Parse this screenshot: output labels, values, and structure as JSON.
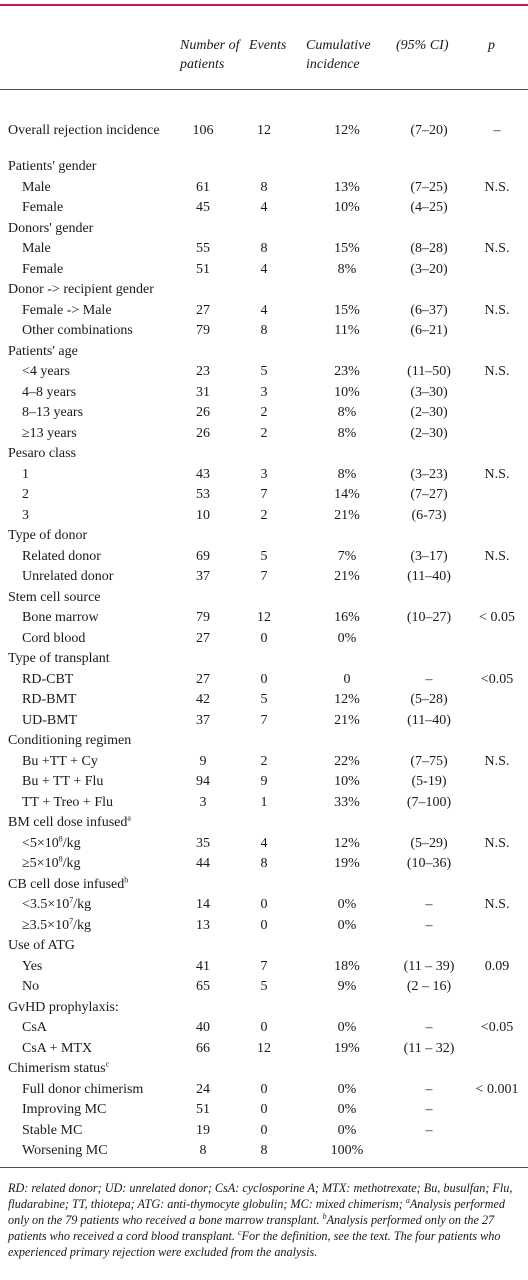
{
  "header": {
    "number_of_patients": "Number of patients",
    "events": "Events",
    "cumulative_incidence": "Cumulative incidence",
    "ci": "(95% CI)",
    "p": "p"
  },
  "rows": [
    {
      "type": "overall",
      "label": "Overall rejection incidence",
      "n": "106",
      "events": "12",
      "cum": "12%",
      "ci": "(7–20)",
      "p": "–"
    },
    {
      "type": "gap"
    },
    {
      "type": "group",
      "label": "Patients' gender"
    },
    {
      "type": "sub",
      "label": "Male",
      "n": "61",
      "events": "8",
      "cum": "13%",
      "ci": "(7–25)",
      "p": "N.S."
    },
    {
      "type": "sub",
      "label": "Female",
      "n": "45",
      "events": "4",
      "cum": "10%",
      "ci": "(4–25)",
      "p": ""
    },
    {
      "type": "group",
      "label": "Donors' gender"
    },
    {
      "type": "sub",
      "label": "Male",
      "n": "55",
      "events": "8",
      "cum": "15%",
      "ci": "(8–28)",
      "p": "N.S."
    },
    {
      "type": "sub",
      "label": "Female",
      "n": "51",
      "events": "4",
      "cum": "8%",
      "ci": "(3–20)",
      "p": ""
    },
    {
      "type": "group",
      "label": "Donor -> recipient gender"
    },
    {
      "type": "sub",
      "label": "Female -> Male",
      "n": "27",
      "events": "4",
      "cum": "15%",
      "ci": "(6–37)",
      "p": "N.S."
    },
    {
      "type": "sub",
      "label": "Other combinations",
      "n": "79",
      "events": "8",
      "cum": "11%",
      "ci": "(6–21)",
      "p": ""
    },
    {
      "type": "group",
      "label": "Patients' age"
    },
    {
      "type": "sub",
      "label": "<4 years",
      "n": "23",
      "events": "5",
      "cum": "23%",
      "ci": "(11–50)",
      "p": "N.S."
    },
    {
      "type": "sub",
      "label": "4–8 years",
      "n": "31",
      "events": "3",
      "cum": "10%",
      "ci": "(3–30)",
      "p": ""
    },
    {
      "type": "sub",
      "label": "8–13 years",
      "n": "26",
      "events": "2",
      "cum": "8%",
      "ci": "(2–30)",
      "p": ""
    },
    {
      "type": "sub",
      "label": "≥13 years",
      "n": "26",
      "events": "2",
      "cum": "8%",
      "ci": "(2–30)",
      "p": ""
    },
    {
      "type": "group",
      "label": "Pesaro class"
    },
    {
      "type": "sub",
      "label": "1",
      "n": "43",
      "events": "3",
      "cum": "8%",
      "ci": "(3–23)",
      "p": "N.S."
    },
    {
      "type": "sub",
      "label": "2",
      "n": "53",
      "events": "7",
      "cum": "14%",
      "ci": "(7–27)",
      "p": ""
    },
    {
      "type": "sub",
      "label": "3",
      "n": "10",
      "events": "2",
      "cum": "21%",
      "ci": "(6-73)",
      "p": ""
    },
    {
      "type": "group",
      "label": "Type of donor"
    },
    {
      "type": "sub",
      "label": "Related donor",
      "n": "69",
      "events": "5",
      "cum": "7%",
      "ci": "(3–17)",
      "p": "N.S."
    },
    {
      "type": "sub",
      "label": "Unrelated donor",
      "n": "37",
      "events": "7",
      "cum": "21%",
      "ci": "(11–40)",
      "p": ""
    },
    {
      "type": "group",
      "label": "Stem cell source"
    },
    {
      "type": "sub",
      "label": "Bone marrow",
      "n": "79",
      "events": "12",
      "cum": "16%",
      "ci": "(10–27)",
      "p": "< 0.05"
    },
    {
      "type": "sub",
      "label": "Cord blood",
      "n": "27",
      "events": "0",
      "cum": "0%",
      "ci": "",
      "p": ""
    },
    {
      "type": "group",
      "label": "Type of transplant"
    },
    {
      "type": "sub",
      "label": "RD-CBT",
      "n": "27",
      "events": "0",
      "cum": "0",
      "ci": "–",
      "p": "<0.05"
    },
    {
      "type": "sub",
      "label": "RD-BMT",
      "n": "42",
      "events": "5",
      "cum": "12%",
      "ci": "(5–28)",
      "p": ""
    },
    {
      "type": "sub",
      "label": "UD-BMT",
      "n": "37",
      "events": "7",
      "cum": "21%",
      "ci": "(11–40)",
      "p": ""
    },
    {
      "type": "group",
      "label": "Conditioning regimen"
    },
    {
      "type": "sub",
      "label": "Bu +TT + Cy",
      "n": "9",
      "events": "2",
      "cum": "22%",
      "ci": "(7–75)",
      "p": "N.S."
    },
    {
      "type": "sub",
      "label": "Bu + TT + Flu",
      "n": "94",
      "events": "9",
      "cum": "10%",
      "ci": "(5-19)",
      "p": ""
    },
    {
      "type": "sub",
      "label": "TT + Treo + Flu",
      "n": "3",
      "events": "1",
      "cum": "33%",
      "ci": "(7–100)",
      "p": ""
    },
    {
      "type": "group",
      "label": "BM cell dose infused",
      "sup": "a"
    },
    {
      "type": "sub",
      "label": "<5×10",
      "sup": "8",
      "suffix": "/kg",
      "n": "35",
      "events": "4",
      "cum": "12%",
      "ci": "(5–29)",
      "p": "N.S."
    },
    {
      "type": "sub",
      "label": "≥5×10",
      "sup": "8",
      "suffix": "/kg",
      "n": "44",
      "events": "8",
      "cum": "19%",
      "ci": "(10–36)",
      "p": ""
    },
    {
      "type": "group",
      "label": "CB cell dose infused",
      "sup": "b"
    },
    {
      "type": "sub",
      "label": "<3.5×10",
      "sup": "7",
      "suffix": "/kg",
      "n": "14",
      "events": "0",
      "cum": "0%",
      "ci": "–",
      "p": "N.S."
    },
    {
      "type": "sub",
      "label": "≥3.5×10",
      "sup": "7",
      "suffix": "/kg",
      "n": "13",
      "events": "0",
      "cum": "0%",
      "ci": "–",
      "p": ""
    },
    {
      "type": "group",
      "label": "Use of ATG"
    },
    {
      "type": "sub",
      "label": "Yes",
      "n": "41",
      "events": "7",
      "cum": "18%",
      "ci": "(11 – 39)",
      "p": "0.09"
    },
    {
      "type": "sub",
      "label": "No",
      "n": "65",
      "events": "5",
      "cum": "9%",
      "ci": "(2 – 16)",
      "p": ""
    },
    {
      "type": "group",
      "label": "GvHD prophylaxis:"
    },
    {
      "type": "sub",
      "label": "CsA",
      "n": "40",
      "events": "0",
      "cum": "0%",
      "ci": "–",
      "p": "<0.05"
    },
    {
      "type": "sub",
      "label": "CsA + MTX",
      "n": "66",
      "events": "12",
      "cum": "19%",
      "ci": "(11 – 32)",
      "p": ""
    },
    {
      "type": "group",
      "label": "Chimerism status",
      "sup": "c"
    },
    {
      "type": "sub",
      "label": "Full donor chimerism",
      "n": "24",
      "events": "0",
      "cum": "0%",
      "ci": "–",
      "p": "< 0.001"
    },
    {
      "type": "sub",
      "label": "Improving MC",
      "n": "51",
      "events": "0",
      "cum": "0%",
      "ci": "–",
      "p": ""
    },
    {
      "type": "sub",
      "label": "Stable MC",
      "n": "19",
      "events": "0",
      "cum": "0%",
      "ci": "–",
      "p": ""
    },
    {
      "type": "sub",
      "label": "Worsening MC",
      "n": "8",
      "events": "8",
      "cum": "100%",
      "ci": "",
      "p": ""
    }
  ],
  "footnote": {
    "part1": "RD: related donor; UD: unrelated donor; CsA: cyclosporine A;  MTX: methotrexate; Bu, busulfan; Flu, fludarabine; TT, thiotepa; ATG: anti-thymocyte globulin; MC: mixed chimerism; ",
    "sup_a": "a",
    "part2": "Analysis performed only on the 79 patients who received a bone marrow transplant. ",
    "sup_b": "b",
    "part3": "Analysis performed only on the 27 patients who received a cord blood transplant. ",
    "sup_c": "c",
    "part4": "For the definition, see the text. The four patients who experienced primary rejection were excluded from the analysis."
  },
  "colors": {
    "rule": "#c2185b",
    "text": "#1a1a1a"
  }
}
